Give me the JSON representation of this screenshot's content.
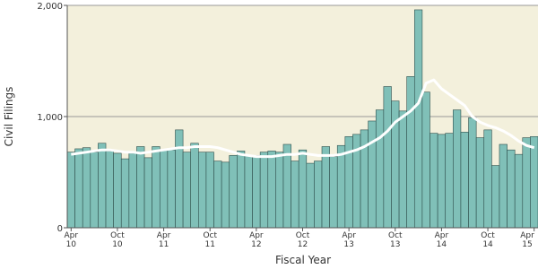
{
  "chart_data": {
    "type": "bar",
    "y_label": "Civil Filings",
    "x_label": "Fiscal Year",
    "categories": [
      "Apr 10",
      null,
      null,
      null,
      null,
      null,
      "Oct 10",
      null,
      null,
      null,
      null,
      null,
      "Apr 11",
      null,
      null,
      null,
      null,
      null,
      "Oct 11",
      null,
      null,
      null,
      null,
      null,
      "Apr 12",
      null,
      null,
      null,
      null,
      null,
      "Oct 12",
      null,
      null,
      null,
      null,
      null,
      "Apr 13",
      null,
      null,
      null,
      null,
      null,
      "Oct 13",
      null,
      null,
      null,
      null,
      null,
      "Apr 14",
      null,
      null,
      null,
      null,
      null,
      "Oct 14",
      null,
      null,
      null,
      null,
      null,
      "Apr 15"
    ],
    "series": [
      {
        "type": "bar",
        "color": "#80c0b8",
        "values": [
          680,
          710,
          720,
          680,
          760,
          690,
          670,
          620,
          670,
          730,
          630,
          730,
          700,
          700,
          880,
          680,
          760,
          680,
          680,
          600,
          590,
          650,
          690,
          650,
          650,
          680,
          690,
          680,
          750,
          600,
          700,
          580,
          600,
          730,
          640,
          740,
          820,
          840,
          880,
          960,
          1060,
          1270,
          1140,
          1050,
          1360,
          1960,
          1220,
          850,
          840,
          850,
          1060,
          860,
          990,
          810,
          880,
          560,
          750,
          700,
          660,
          810,
          820
        ]
      },
      {
        "type": "line",
        "color": "#ffffff",
        "values": [
          660,
          670,
          680,
          690,
          700,
          700,
          690,
          680,
          680,
          670,
          680,
          690,
          700,
          710,
          720,
          720,
          730,
          730,
          730,
          720,
          700,
          680,
          660,
          650,
          640,
          640,
          640,
          650,
          660,
          660,
          670,
          660,
          650,
          650,
          650,
          660,
          680,
          700,
          730,
          770,
          810,
          870,
          950,
          1000,
          1050,
          1120,
          1300,
          1330,
          1250,
          1200,
          1150,
          1100,
          1000,
          950,
          920,
          900,
          870,
          830,
          780,
          740,
          720
        ]
      }
    ],
    "ylim": [
      0,
      2000
    ],
    "yticks": [
      0,
      {
        "value": 1000,
        "label": "1,000"
      },
      {
        "value": 2000,
        "label": "2,000"
      }
    ],
    "grid": true,
    "background": "#f3f0dc"
  }
}
